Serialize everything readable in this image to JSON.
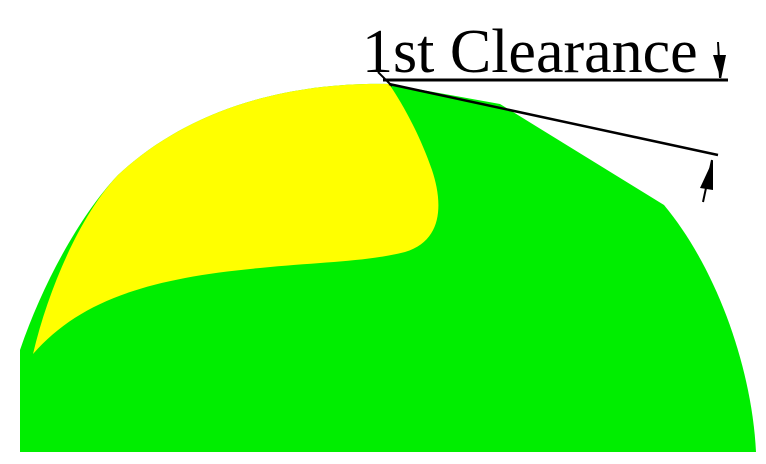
{
  "diagram": {
    "label": "1st Clearance",
    "colors": {
      "background": "#ffffff",
      "primary_region": "#00ee00",
      "secondary_region": "#ffff00",
      "dimension_lines": "#000000",
      "label_text": "#000000"
    }
  }
}
